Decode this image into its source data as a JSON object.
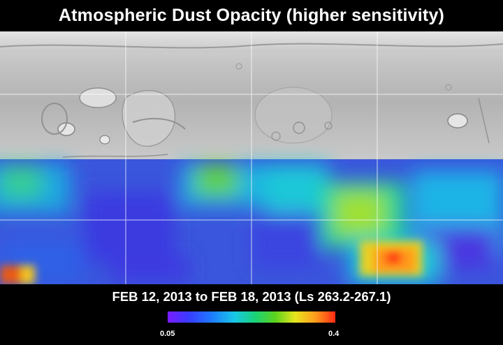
{
  "title": "Atmospheric Dust Opacity (higher sensitivity)",
  "date_range": "FEB 12, 2013 to FEB 18, 2013 (Ls 263.2-267.1)",
  "colorbar": {
    "min_label": "0.05",
    "max_label": "0.4",
    "colors": [
      "#7a1cff",
      "#3a3aff",
      "#1e7aff",
      "#19c8e6",
      "#19d27a",
      "#5ad21e",
      "#e6e61e",
      "#ff9e1e",
      "#ff2a14"
    ]
  },
  "map": {
    "grid_lines": "on",
    "unmapped_region_color": "#bdbdbd",
    "note_colors": {
      "low_opacity": "#3a48d8",
      "mid_opacity": "#1ecfd0",
      "high_opacity": "#ff3a14"
    }
  }
}
